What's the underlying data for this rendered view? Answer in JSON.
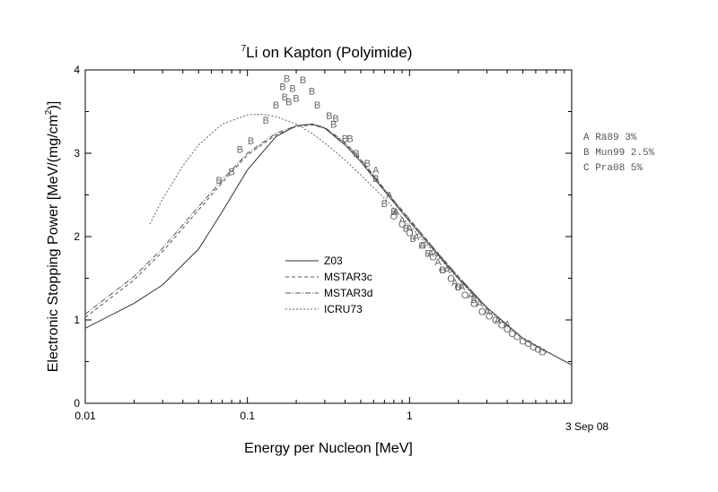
{
  "chart_data": {
    "type": "line",
    "title_sup": "7",
    "title_main": "Li on Kapton (Polyimide)",
    "xlabel": "Energy per Nucleon [MeV]",
    "ylabel_main": "Electronic Stopping Power [MeV/(mg/cm",
    "ylabel_sup": "2",
    "ylabel_end": ")]",
    "xscale": "log",
    "xlim": [
      0.01,
      10
    ],
    "ylim": [
      0,
      4
    ],
    "x_ticks": [
      {
        "value": 0.01,
        "label": "0.01"
      },
      {
        "value": 0.1,
        "label": "0.1"
      },
      {
        "value": 1,
        "label": "1"
      }
    ],
    "y_ticks": [
      {
        "value": 0,
        "label": "0"
      },
      {
        "value": 1,
        "label": "1"
      },
      {
        "value": 2,
        "label": "2"
      },
      {
        "value": 3,
        "label": "3"
      },
      {
        "value": 4,
        "label": "4"
      }
    ],
    "date_label": "3 Sep 08",
    "grid": false,
    "legend_position": "center-left",
    "series": [
      {
        "name": "Z03",
        "style": "solid",
        "color": "#333333",
        "x": [
          0.01,
          0.02,
          0.03,
          0.05,
          0.07,
          0.1,
          0.15,
          0.2,
          0.25,
          0.3,
          0.4,
          0.5,
          0.7,
          1,
          1.5,
          2,
          3,
          5,
          7,
          10
        ],
        "y": [
          0.9,
          1.2,
          1.42,
          1.85,
          2.3,
          2.8,
          3.2,
          3.33,
          3.35,
          3.3,
          3.1,
          2.9,
          2.55,
          2.18,
          1.78,
          1.5,
          1.15,
          0.78,
          0.62,
          0.46
        ]
      },
      {
        "name": "MSTAR3c",
        "style": "dashed",
        "color": "#555555",
        "x": [
          0.01,
          0.02,
          0.03,
          0.05,
          0.07,
          0.1,
          0.15,
          0.2,
          0.25,
          0.3,
          0.4,
          0.5,
          0.7,
          1,
          1.5,
          2,
          3,
          5,
          7,
          10
        ],
        "y": [
          1.03,
          1.48,
          1.82,
          2.32,
          2.65,
          2.98,
          3.22,
          3.32,
          3.34,
          3.3,
          3.12,
          2.92,
          2.56,
          2.2,
          1.8,
          1.52,
          1.15,
          0.78,
          0.62,
          0.46
        ]
      },
      {
        "name": "MSTAR3d",
        "style": "dashdot",
        "color": "#555555",
        "x": [
          0.01,
          0.02,
          0.03,
          0.05,
          0.07,
          0.1,
          0.15,
          0.2,
          0.25,
          0.3,
          0.4,
          0.5,
          0.7,
          1,
          1.5,
          2,
          3,
          5,
          7,
          10
        ],
        "y": [
          1.07,
          1.52,
          1.86,
          2.36,
          2.68,
          3.0,
          3.24,
          3.33,
          3.35,
          3.31,
          3.13,
          2.93,
          2.57,
          2.21,
          1.8,
          1.52,
          1.15,
          0.78,
          0.62,
          0.46
        ]
      },
      {
        "name": "ICRU73",
        "style": "dotted",
        "color": "#666666",
        "x": [
          0.025,
          0.03,
          0.04,
          0.05,
          0.07,
          0.1,
          0.12,
          0.15,
          0.2,
          0.25,
          0.3,
          0.4,
          0.5,
          0.7,
          1,
          1.5,
          2,
          3,
          5,
          7
        ],
        "y": [
          2.15,
          2.45,
          2.85,
          3.1,
          3.35,
          3.46,
          3.47,
          3.44,
          3.35,
          3.24,
          3.12,
          2.92,
          2.74,
          2.46,
          2.13,
          1.76,
          1.49,
          1.13,
          0.77,
          0.61
        ]
      }
    ],
    "data_points": {
      "A": [
        [
          0.62,
          2.8
        ],
        [
          0.75,
          2.5
        ],
        [
          0.82,
          2.3
        ],
        [
          0.9,
          2.2
        ],
        [
          1.0,
          2.1
        ],
        [
          1.1,
          2.0
        ],
        [
          1.2,
          1.9
        ],
        [
          1.35,
          1.8
        ],
        [
          1.5,
          1.7
        ],
        [
          1.7,
          1.6
        ],
        [
          1.9,
          1.45
        ],
        [
          2.1,
          1.4
        ],
        [
          2.4,
          1.3
        ],
        [
          2.7,
          1.2
        ],
        [
          3.0,
          1.1
        ],
        [
          3.5,
          1.0
        ],
        [
          4.0,
          0.95
        ]
      ],
      "B": [
        [
          0.067,
          2.68
        ],
        [
          0.08,
          2.78
        ],
        [
          0.09,
          3.05
        ],
        [
          0.105,
          3.15
        ],
        [
          0.13,
          3.4
        ],
        [
          0.15,
          3.58
        ],
        [
          0.165,
          3.8
        ],
        [
          0.17,
          3.68
        ],
        [
          0.175,
          3.9
        ],
        [
          0.18,
          3.62
        ],
        [
          0.19,
          3.78
        ],
        [
          0.2,
          3.66
        ],
        [
          0.22,
          3.88
        ],
        [
          0.25,
          3.75
        ],
        [
          0.27,
          3.58
        ],
        [
          0.32,
          3.45
        ],
        [
          0.34,
          3.35
        ],
        [
          0.35,
          3.42
        ],
        [
          0.4,
          3.18
        ],
        [
          0.43,
          3.18
        ],
        [
          0.47,
          3.0
        ],
        [
          0.55,
          2.88
        ],
        [
          0.62,
          2.7
        ],
        [
          0.7,
          2.4
        ],
        [
          0.8,
          2.3
        ],
        [
          0.95,
          2.1
        ],
        [
          1.05,
          1.98
        ],
        [
          1.3,
          1.8
        ],
        [
          1.6,
          1.6
        ],
        [
          2.0,
          1.4
        ],
        [
          2.5,
          1.25
        ]
      ],
      "C": [
        [
          0.8,
          2.25
        ],
        [
          0.9,
          2.15
        ],
        [
          1.0,
          2.05
        ],
        [
          1.2,
          1.9
        ],
        [
          1.4,
          1.76
        ],
        [
          1.6,
          1.6
        ],
        [
          1.8,
          1.5
        ],
        [
          2.0,
          1.4
        ],
        [
          2.2,
          1.3
        ],
        [
          2.5,
          1.2
        ],
        [
          2.8,
          1.1
        ],
        [
          3.1,
          1.05
        ],
        [
          3.4,
          1.0
        ],
        [
          3.7,
          0.94
        ],
        [
          4.0,
          0.89
        ],
        [
          4.3,
          0.84
        ],
        [
          4.6,
          0.8
        ],
        [
          5.0,
          0.75
        ],
        [
          5.4,
          0.72
        ],
        [
          5.8,
          0.68
        ],
        [
          6.2,
          0.65
        ],
        [
          6.6,
          0.62
        ]
      ]
    },
    "references": [
      {
        "letter": "A",
        "text": "A Rä89  3%"
      },
      {
        "letter": "B",
        "text": "B Mun99 2.5%"
      },
      {
        "letter": "C",
        "text": "C Pra08 5%"
      }
    ]
  }
}
